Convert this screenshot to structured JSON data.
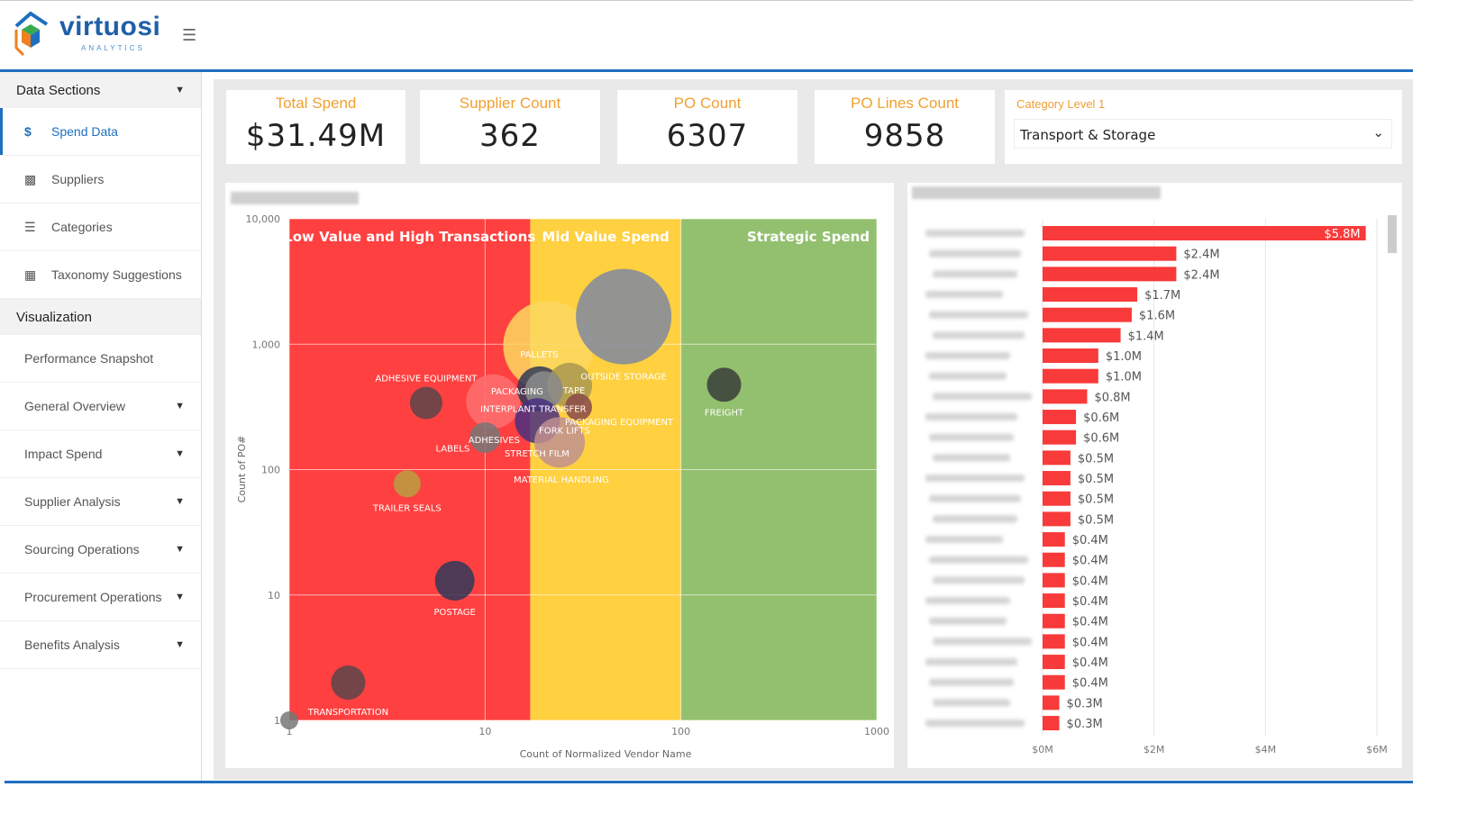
{
  "header": {
    "logo_text": "virtuosi",
    "logo_subtext": "ANALYTICS",
    "menu_icon": "hamburger-icon"
  },
  "sidebar": {
    "data_sections_label": "Data Sections",
    "data_items": [
      {
        "label": "Spend Data",
        "icon": "dollar-icon",
        "active": true
      },
      {
        "label": "Suppliers",
        "icon": "org-chart-icon"
      },
      {
        "label": "Categories",
        "icon": "layers-icon"
      },
      {
        "label": "Taxonomy Suggestions",
        "icon": "clipboard-icon"
      }
    ],
    "visualization_label": "Visualization",
    "viz_items": [
      {
        "label": "Performance Snapshot",
        "expandable": false
      },
      {
        "label": "General Overview",
        "expandable": true
      },
      {
        "label": "Impact Spend",
        "expandable": true
      },
      {
        "label": "Supplier Analysis",
        "expandable": true
      },
      {
        "label": "Sourcing Operations",
        "expandable": true
      },
      {
        "label": "Procurement Operations",
        "expandable": true
      },
      {
        "label": "Benefits Analysis",
        "expandable": true
      }
    ]
  },
  "kpis": [
    {
      "title": "Total Spend",
      "value": "$31.49M"
    },
    {
      "title": "Supplier Count",
      "value": "362"
    },
    {
      "title": "PO Count",
      "value": "6307"
    },
    {
      "title": "PO Lines Count",
      "value": "9858"
    }
  ],
  "filter": {
    "label": "Category Level 1",
    "value": "Transport & Storage"
  },
  "colors": {
    "accent": "#1f6fbf",
    "kpi_title": "#f0a030",
    "low_zone": "#ff4040",
    "mid_zone": "#ffd040",
    "strategic_zone": "#93c06f",
    "bar": "#f93a3a"
  },
  "chart_data": [
    {
      "type": "scatter",
      "xlabel": "Count of Normalized Vendor Name",
      "ylabel": "Count of PO#",
      "xscale": "log",
      "yscale": "log",
      "xlim": [
        1,
        1000
      ],
      "ylim": [
        1,
        10000
      ],
      "xticks": [
        "1",
        "10",
        "100",
        "1000"
      ],
      "yticks": [
        "1",
        "10",
        "100",
        "1,000",
        "10,000"
      ],
      "grid": true,
      "zones": [
        {
          "label": "Low Value and High Transactions",
          "x_range": [
            1,
            17
          ],
          "color": "#ff4040"
        },
        {
          "label": "Mid Value Spend",
          "x_range": [
            17,
            100
          ],
          "color": "#ffd040"
        },
        {
          "label": "Strategic Spend",
          "x_range": [
            100,
            1000
          ],
          "color": "#93c06f"
        }
      ],
      "points": [
        {
          "label": "",
          "x": 1,
          "y": 1,
          "size": 10,
          "color": "#777777"
        },
        {
          "label": "TRANSPORTATION",
          "x": 2,
          "y": 2,
          "size": 19,
          "color": "#5a454a"
        },
        {
          "label": "POSTAGE",
          "x": 7,
          "y": 13,
          "size": 22,
          "color": "#2f3a58"
        },
        {
          "label": "TRAILER SEALS",
          "x": 4,
          "y": 77,
          "size": 15,
          "color": "#b8a040"
        },
        {
          "label": "ADHESIVE EQUIPMENT",
          "x": 5,
          "y": 340,
          "size": 18,
          "color": "#5a454a"
        },
        {
          "label": "LABELS",
          "x": 11,
          "y": 350,
          "size": 30,
          "color": "#ff7070"
        },
        {
          "label": "ADHESIVES",
          "x": 10,
          "y": 180,
          "size": 17,
          "color": "#777777"
        },
        {
          "label": "PALLETS",
          "x": 21,
          "y": 970,
          "size": 50,
          "color": "#fcd860"
        },
        {
          "label": "OUTSIDE STORAGE",
          "x": 51,
          "y": 1660,
          "size": 53,
          "color": "#8088a0"
        },
        {
          "label": "PACKAGING",
          "x": 19,
          "y": 440,
          "size": 25,
          "color": "#2f3a58"
        },
        {
          "label": "TAPE",
          "x": 27,
          "y": 470,
          "size": 25,
          "color": "#a89850"
        },
        {
          "label": "INTERPLANT TRANSFER",
          "x": 20,
          "y": 430,
          "size": 21,
          "color": "#8c8c8c"
        },
        {
          "label": "PACKAGING EQUIPMENT",
          "x": 30,
          "y": 315,
          "size": 15,
          "color": "#8a4a4a"
        },
        {
          "label": "FORK LIFTS",
          "x": 18.5,
          "y": 245,
          "size": 25,
          "color": "#4a3080"
        },
        {
          "label": "STRETCH FILM",
          "x": 24,
          "y": 165,
          "size": 28,
          "color": "#c09090"
        },
        {
          "label": "MATERIAL HANDLING",
          "x": 24,
          "y": 165,
          "size": 0,
          "color": "#c09090"
        },
        {
          "label": "FREIGHT",
          "x": 166,
          "y": 475,
          "size": 19,
          "color": "#3a3d3a"
        }
      ]
    },
    {
      "type": "bar",
      "orientation": "horizontal",
      "xlim": [
        0,
        6
      ],
      "xticks": [
        "$0M",
        "$2M",
        "$4M",
        "$6M"
      ],
      "grid": true,
      "values": [
        5.8,
        2.4,
        2.4,
        1.7,
        1.6,
        1.4,
        1.0,
        1.0,
        0.8,
        0.6,
        0.6,
        0.5,
        0.5,
        0.5,
        0.5,
        0.4,
        0.4,
        0.4,
        0.4,
        0.4,
        0.4,
        0.4,
        0.4,
        0.3,
        0.3
      ],
      "data_labels": [
        "$5.8M",
        "$2.4M",
        "$2.4M",
        "$1.7M",
        "$1.6M",
        "$1.4M",
        "$1.0M",
        "$1.0M",
        "$0.8M",
        "$0.6M",
        "$0.6M",
        "$0.5M",
        "$0.5M",
        "$0.5M",
        "$0.5M",
        "$0.4M",
        "$0.4M",
        "$0.4M",
        "$0.4M",
        "$0.4M",
        "$0.4M",
        "$0.4M",
        "$0.4M",
        "$0.3M",
        "$0.3M"
      ]
    }
  ]
}
